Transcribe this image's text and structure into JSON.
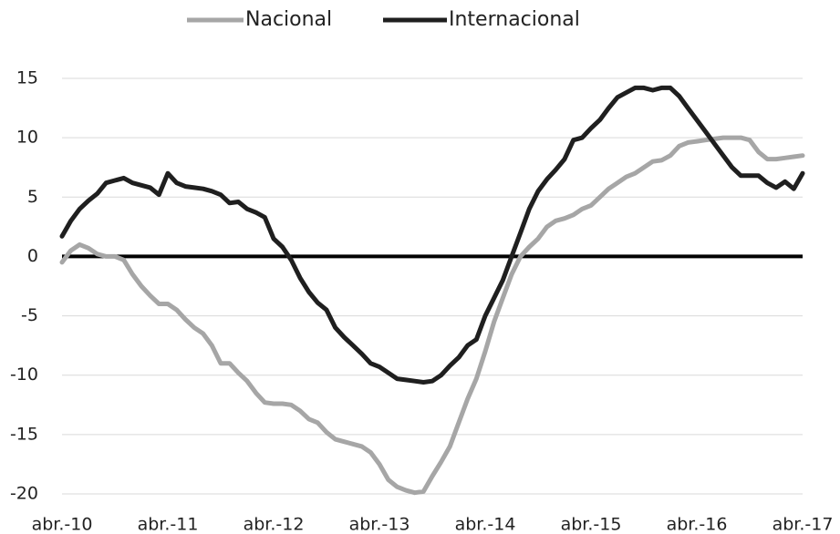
{
  "chart_data": {
    "type": "line",
    "categories": [
      "abr.-10",
      null,
      null,
      null,
      null,
      null,
      null,
      null,
      null,
      null,
      null,
      null,
      "abr.-11",
      null,
      null,
      null,
      null,
      null,
      null,
      null,
      null,
      null,
      null,
      null,
      "abr.-12",
      null,
      null,
      null,
      null,
      null,
      null,
      null,
      null,
      null,
      null,
      null,
      "abr.-13",
      null,
      null,
      null,
      null,
      null,
      null,
      null,
      null,
      null,
      null,
      null,
      "abr.-14",
      null,
      null,
      null,
      null,
      null,
      null,
      null,
      null,
      null,
      null,
      null,
      "abr.-15",
      null,
      null,
      null,
      null,
      null,
      null,
      null,
      null,
      null,
      null,
      null,
      "abr.-16",
      null,
      null,
      null,
      null,
      null,
      null,
      null,
      null,
      null,
      null,
      null,
      "abr.-17"
    ],
    "series": [
      {
        "name": "Nacional",
        "color": "#a6a6a6",
        "values": [
          -0.5,
          0.5,
          1,
          0.7,
          0.2,
          0,
          0,
          -0.3,
          -1.5,
          -2.5,
          -3.3,
          -4,
          -4,
          -4.5,
          -5.3,
          -6,
          -6.5,
          -7.5,
          -9,
          -9,
          -9.8,
          -10.5,
          -11.5,
          -12.3,
          -12.4,
          -12.4,
          -12.5,
          -13,
          -13.7,
          -14,
          -14.8,
          -15.4,
          -15.6,
          -15.8,
          -16,
          -16.5,
          -17.5,
          -18.8,
          -19.4,
          -19.7,
          -19.9,
          -19.8,
          -18.5,
          -17.3,
          -16,
          -14,
          -12,
          -10.3,
          -8,
          -5.5,
          -3.5,
          -1.5,
          0,
          0.8,
          1.5,
          2.5,
          3,
          3.2,
          3.5,
          4,
          4.3,
          5,
          5.7,
          6.2,
          6.7,
          7,
          7.5,
          8,
          8.1,
          8.5,
          9.3,
          9.6,
          9.7,
          9.8,
          9.9,
          10,
          10,
          10,
          9.8,
          8.8,
          8.2,
          8.2,
          8.3,
          8.4,
          8.5
        ]
      },
      {
        "name": "Internacional",
        "color": "#1f1f1f",
        "values": [
          1.7,
          3,
          4,
          4.7,
          5.3,
          6.2,
          6.4,
          6.6,
          6.2,
          6,
          5.8,
          5.2,
          7,
          6.2,
          5.9,
          5.8,
          5.7,
          5.5,
          5.2,
          4.5,
          4.6,
          4,
          3.7,
          3.3,
          1.5,
          0.8,
          -0.3,
          -1.8,
          -3,
          -3.9,
          -4.5,
          -6,
          -6.8,
          -7.5,
          -8.2,
          -9,
          -9.3,
          -9.8,
          -10.3,
          -10.4,
          -10.5,
          -10.6,
          -10.5,
          -10,
          -9.2,
          -8.5,
          -7.5,
          -7,
          -5,
          -3.5,
          -2,
          0,
          2,
          4,
          5.5,
          6.5,
          7.3,
          8.2,
          9.8,
          10,
          10.8,
          11.5,
          12.5,
          13.4,
          13.8,
          14.2,
          14.2,
          14,
          14.2,
          14.2,
          13.5,
          12.5,
          11.5,
          10.5,
          9.5,
          8.5,
          7.5,
          6.8,
          6.8,
          6.8,
          6.2,
          5.8,
          6.3,
          5.7,
          7
        ]
      }
    ],
    "ylim": [
      -20,
      15
    ],
    "yticks": [
      -20,
      -15,
      -10,
      -5,
      0,
      5,
      10,
      15
    ],
    "grid": true,
    "legend": "top"
  }
}
